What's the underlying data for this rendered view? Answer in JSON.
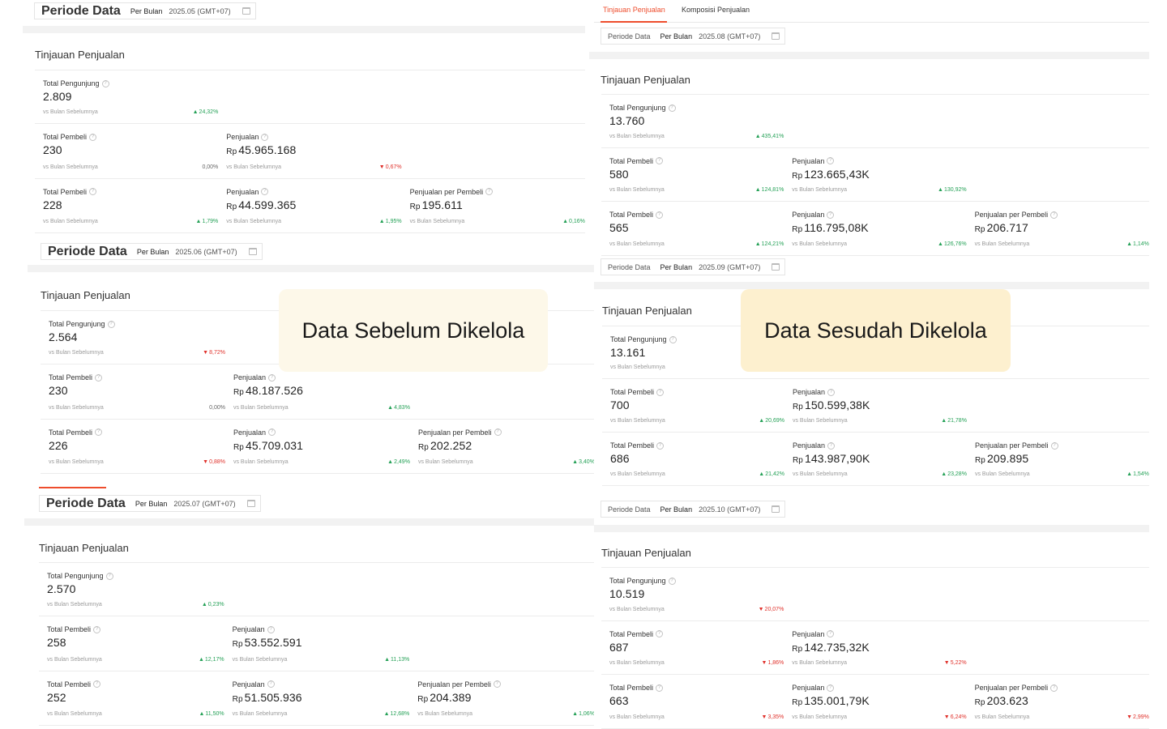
{
  "tabs": {
    "active": "Tinjauan Penjualan",
    "other": "Komposisi Penjualan"
  },
  "common": {
    "period_label": "Periode Data",
    "mode": "Per Bulan",
    "section_title": "Tinjauan Penjualan",
    "vs": "vs Bulan Sebelumnya",
    "label_visitors": "Total Pengunjung",
    "label_buyers": "Total Pembeli",
    "label_sales": "Penjualan",
    "label_per_buyer": "Penjualan per Pembeli",
    "rp": "Rp"
  },
  "overlays": {
    "before": "Data Sebelum Dikelola",
    "after": "Data Sesudah Dikelola"
  },
  "panels": {
    "may": {
      "period": "2025.05 (GMT+07)",
      "visitors": {
        "value": "2.809",
        "change": "24,32%",
        "dir": "up"
      },
      "row2": {
        "buyers": "230",
        "buyers_change": "0,00%",
        "buyers_dir": "none",
        "sales": "45.965.168",
        "sales_change": "0,67%",
        "sales_dir": "down"
      },
      "row3": {
        "buyers": "228",
        "buyers_change": "1,79%",
        "buyers_dir": "up",
        "sales": "44.599.365",
        "sales_change": "1,95%",
        "sales_dir": "up",
        "per_buyer": "195.611",
        "per_buyer_change": "0,16%",
        "per_buyer_dir": "up"
      }
    },
    "jun": {
      "period": "2025.06 (GMT+07)",
      "visitors": {
        "value": "2.564",
        "change": "8,72%",
        "dir": "down"
      },
      "row2": {
        "buyers": "230",
        "buyers_change": "0,00%",
        "buyers_dir": "none",
        "sales": "48.187.526",
        "sales_change": "4,83%",
        "sales_dir": "up"
      },
      "row3": {
        "buyers": "226",
        "buyers_change": "0,88%",
        "buyers_dir": "down",
        "sales": "45.709.031",
        "sales_change": "2,49%",
        "sales_dir": "up",
        "per_buyer": "202.252",
        "per_buyer_change": "3,40%",
        "per_buyer_dir": "up"
      }
    },
    "jul": {
      "period": "2025.07 (GMT+07)",
      "visitors": {
        "value": "2.570",
        "change": "0,23%",
        "dir": "up"
      },
      "row2": {
        "buyers": "258",
        "buyers_change": "12,17%",
        "buyers_dir": "up",
        "sales": "53.552.591",
        "sales_change": "11,13%",
        "sales_dir": "up"
      },
      "row3": {
        "buyers": "252",
        "buyers_change": "11,50%",
        "buyers_dir": "up",
        "sales": "51.505.936",
        "sales_change": "12,68%",
        "sales_dir": "up",
        "per_buyer": "204.389",
        "per_buyer_change": "1,06%",
        "per_buyer_dir": "up"
      }
    },
    "aug": {
      "period": "2025.08 (GMT+07)",
      "visitors": {
        "value": "13.760",
        "change": "435,41%",
        "dir": "up"
      },
      "row2": {
        "buyers": "580",
        "buyers_change": "124,81%",
        "buyers_dir": "up",
        "sales": "123.665,43K",
        "sales_change": "130,92%",
        "sales_dir": "up"
      },
      "row3": {
        "buyers": "565",
        "buyers_change": "124,21%",
        "buyers_dir": "up",
        "sales": "116.795,08K",
        "sales_change": "126,76%",
        "sales_dir": "up",
        "per_buyer": "206.717",
        "per_buyer_change": "1,14%",
        "per_buyer_dir": "up"
      }
    },
    "sep": {
      "period": "2025.09 (GMT+07)",
      "visitors": {
        "value": "13.161",
        "change": "",
        "dir": "none"
      },
      "row2": {
        "buyers": "700",
        "buyers_change": "20,69%",
        "buyers_dir": "up",
        "sales": "150.599,38K",
        "sales_change": "21,78%",
        "sales_dir": "up"
      },
      "row3": {
        "buyers": "686",
        "buyers_change": "21,42%",
        "buyers_dir": "up",
        "sales": "143.987,90K",
        "sales_change": "23,28%",
        "sales_dir": "up",
        "per_buyer": "209.895",
        "per_buyer_change": "1,54%",
        "per_buyer_dir": "up"
      }
    },
    "oct": {
      "period": "2025.10 (GMT+07)",
      "visitors": {
        "value": "10.519",
        "change": "20,07%",
        "dir": "down"
      },
      "row2": {
        "buyers": "687",
        "buyers_change": "1,86%",
        "buyers_dir": "down",
        "sales": "142.735,32K",
        "sales_change": "5,22%",
        "sales_dir": "down"
      },
      "row3": {
        "buyers": "663",
        "buyers_change": "3,35%",
        "buyers_dir": "down",
        "sales": "135.001,79K",
        "sales_change": "6,24%",
        "sales_dir": "down",
        "per_buyer": "203.623",
        "per_buyer_change": "2,99%",
        "per_buyer_dir": "down"
      }
    }
  },
  "colors": {
    "accent": "#ee4d2d",
    "up": "#25a157",
    "down": "#e0312b",
    "before_bg": "#fdf8e9",
    "after_bg": "#fdf0cf"
  }
}
